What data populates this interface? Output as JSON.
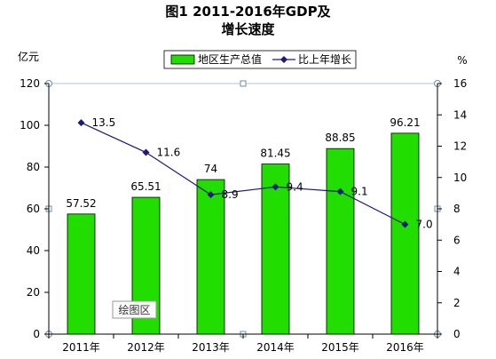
{
  "title_line1": "图1  2011-2016年GDP及",
  "title_line2": "增长速度",
  "plot_area_label": "绘图区",
  "chart_data": {
    "type": "bar+line",
    "categories": [
      "2011年",
      "2012年",
      "2013年",
      "2014年",
      "2015年",
      "2016年"
    ],
    "series": [
      {
        "name": "地区生产总值",
        "type": "bar",
        "axis": "left",
        "values": [
          57.52,
          65.51,
          74,
          81.45,
          88.85,
          96.21
        ],
        "labels": [
          "57.52",
          "65.51",
          "74",
          "81.45",
          "88.85",
          "96.21"
        ],
        "color": "#22dd00"
      },
      {
        "name": "比上年增长",
        "type": "line",
        "axis": "right",
        "values": [
          13.5,
          11.6,
          8.9,
          9.4,
          9.1,
          7.0
        ],
        "labels": [
          "13.5",
          "11.6",
          "8.9",
          "9.4",
          "9.1",
          "7.0"
        ],
        "color": "#1a1a80"
      }
    ],
    "y_left": {
      "unit": "亿元",
      "min": 0,
      "max": 120,
      "ticks": [
        "0",
        "20",
        "40",
        "60",
        "80",
        "100",
        "120"
      ]
    },
    "y_right": {
      "unit": "%",
      "min": 0,
      "max": 16,
      "ticks": [
        "0",
        "2",
        "4",
        "6",
        "8",
        "10",
        "12",
        "14",
        "16"
      ]
    },
    "legend_placement": "top",
    "grid": false
  }
}
